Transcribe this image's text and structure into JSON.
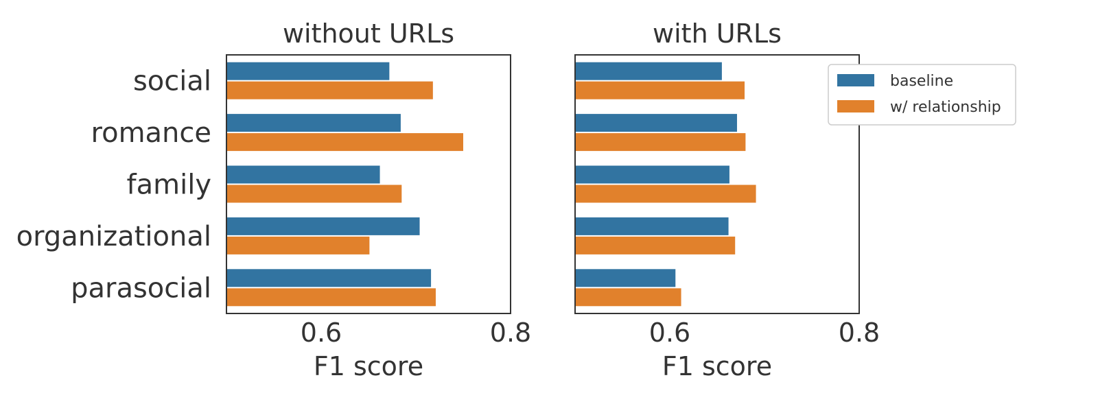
{
  "chart_data": [
    {
      "type": "bar",
      "orientation": "horizontal",
      "title": "without URLs",
      "xlabel": "F1 score",
      "xlim": [
        0.5,
        0.8
      ],
      "xticks": [
        "0.6",
        "0.8"
      ],
      "categories": [
        "social",
        "romance",
        "family",
        "organizational",
        "parasocial"
      ],
      "series": [
        {
          "name": "baseline",
          "color": "#3274a1",
          "values": [
            0.672,
            0.684,
            0.662,
            0.704,
            0.716
          ]
        },
        {
          "name": "w/ relationship",
          "color": "#e1812c",
          "values": [
            0.718,
            0.75,
            0.685,
            0.651,
            0.721
          ]
        }
      ]
    },
    {
      "type": "bar",
      "orientation": "horizontal",
      "title": "with URLs",
      "xlabel": "F1 score",
      "xlim": [
        0.5,
        0.8
      ],
      "xticks": [
        "0.6",
        "0.8"
      ],
      "categories": [
        "social",
        "romance",
        "family",
        "organizational",
        "parasocial"
      ],
      "series": [
        {
          "name": "baseline",
          "color": "#3274a1",
          "values": [
            0.655,
            0.671,
            0.663,
            0.662,
            0.606
          ]
        },
        {
          "name": "w/ relationship",
          "color": "#e1812c",
          "values": [
            0.679,
            0.68,
            0.691,
            0.669,
            0.612
          ]
        }
      ]
    }
  ],
  "legend": {
    "placement": "right",
    "entries": [
      {
        "label": "baseline",
        "color": "#3274a1"
      },
      {
        "label": "w/ relationship",
        "color": "#e1812c"
      }
    ]
  }
}
